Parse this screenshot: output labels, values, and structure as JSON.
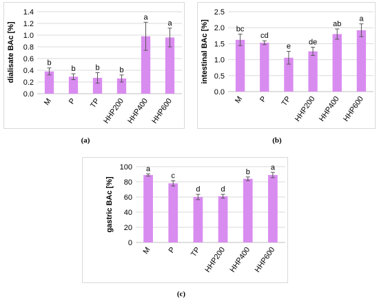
{
  "bar_color": "#d98cf0",
  "error_color": "#555555",
  "grid_color": "#d9d9d9",
  "chart_data": [
    {
      "type": "bar",
      "caption": "(a)",
      "ylabel": "dialisate BAc [%]",
      "ylim": [
        0,
        1.4
      ],
      "yticks": [
        "0.0",
        "0.2",
        "0.4",
        "0.6",
        "0.8",
        "1.0",
        "1.2",
        "1.4"
      ],
      "categories": [
        "M",
        "P",
        "TP",
        "HHP200",
        "HHP400",
        "HHP600"
      ],
      "values": [
        0.38,
        0.29,
        0.27,
        0.26,
        0.98,
        0.96
      ],
      "errors": [
        0.06,
        0.05,
        0.09,
        0.06,
        0.24,
        0.16
      ],
      "labels": [
        "b",
        "b",
        "b",
        "b",
        "a",
        "a"
      ],
      "grid": true
    },
    {
      "type": "bar",
      "caption": "(b)",
      "ylabel": "intestinal BAc [%]",
      "ylim": [
        0,
        2.5
      ],
      "yticks": [
        "0.0",
        "0.5",
        "1.0",
        "1.5",
        "2.0",
        "2.5"
      ],
      "categories": [
        "M",
        "P",
        "TP",
        "HHP200",
        "HHP400",
        "HHP600"
      ],
      "values": [
        1.62,
        1.53,
        1.06,
        1.26,
        1.8,
        1.92
      ],
      "errors": [
        0.18,
        0.06,
        0.2,
        0.13,
        0.16,
        0.2
      ],
      "labels": [
        "bc",
        "cd",
        "e",
        "de",
        "ab",
        "a"
      ],
      "grid": true
    },
    {
      "type": "bar",
      "caption": "(c)",
      "ylabel": "gastric BAc [%]",
      "ylim": [
        0,
        100
      ],
      "yticks": [
        "0",
        "20",
        "40",
        "60",
        "80",
        "100"
      ],
      "categories": [
        "M",
        "P",
        "TP",
        "HHP200",
        "HHP400",
        "HHP600"
      ],
      "values": [
        89,
        78,
        60,
        61,
        84,
        89
      ],
      "errors": [
        1.5,
        3.5,
        3.5,
        2.5,
        2.5,
        3.5
      ],
      "labels": [
        "a",
        "c",
        "d",
        "d",
        "b",
        "a"
      ],
      "grid": true
    }
  ]
}
